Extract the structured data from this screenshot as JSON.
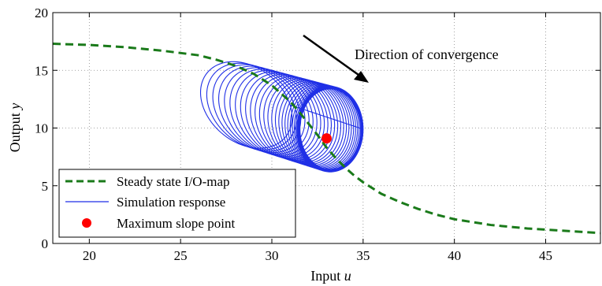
{
  "chart_data": {
    "type": "line",
    "title": "",
    "xlabel": "Input",
    "xlabel_symbol": "u",
    "ylabel": "Output",
    "ylabel_symbol": "y",
    "xlim": [
      18,
      48
    ],
    "ylim": [
      0,
      20
    ],
    "xticks": [
      20,
      25,
      30,
      35,
      40,
      45
    ],
    "yticks": [
      0,
      5,
      10,
      15,
      20
    ],
    "grid": true,
    "legend_position": "bottom-left",
    "annotation": "Direction of convergence",
    "colors": {
      "steady_state": "#1a7a1a",
      "simulation": "#1f2fe6",
      "max_slope": "#ff0000"
    },
    "steady_state": {
      "name": "Steady state I/O-map",
      "x": [
        18,
        20,
        22,
        24,
        26,
        27,
        28,
        29,
        30,
        31,
        31.5,
        32,
        32.5,
        33,
        33.5,
        34,
        34.5,
        35,
        35.5,
        36,
        37,
        38,
        39,
        40,
        42,
        44,
        46,
        48
      ],
      "y": [
        17.3,
        17.2,
        17.0,
        16.7,
        16.3,
        15.9,
        15.4,
        14.7,
        13.7,
        12.3,
        11.4,
        10.4,
        9.4,
        8.3,
        7.4,
        6.6,
        5.9,
        5.3,
        4.8,
        4.3,
        3.6,
        3.0,
        2.5,
        2.1,
        1.6,
        1.3,
        1.1,
        0.9
      ]
    },
    "simulation": {
      "name": "Simulation response",
      "loops": 26,
      "start_center": [
        28.6,
        12.0
      ],
      "start_radius": [
        2.4,
        3.75
      ],
      "end_center": [
        33.2,
        9.9
      ],
      "end_radius": [
        1.8,
        3.7
      ]
    },
    "max_slope_point": {
      "name": "Maximum slope point",
      "x": 33.0,
      "y": 9.1
    }
  }
}
